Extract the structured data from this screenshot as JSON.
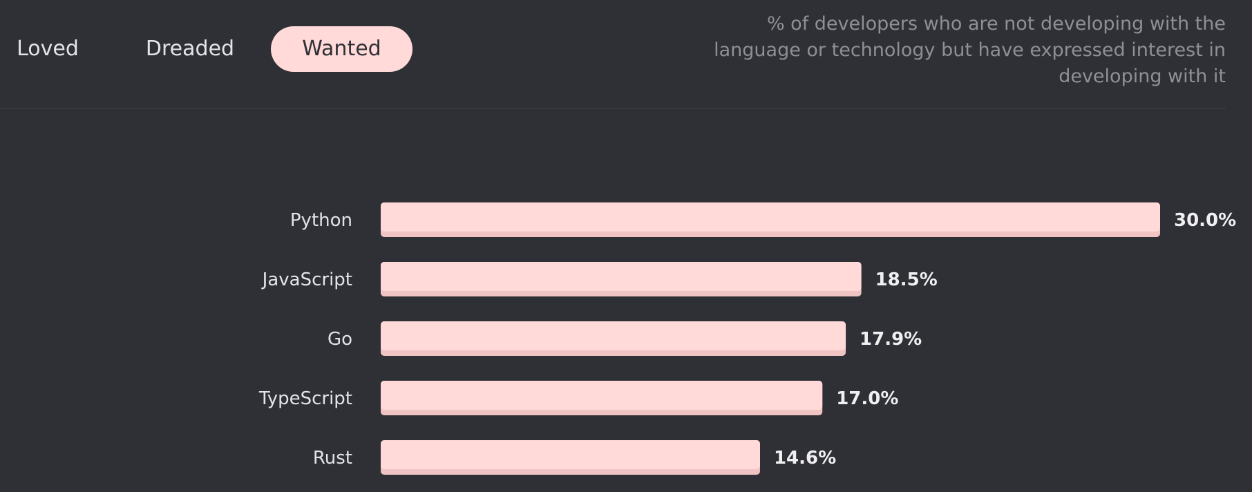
{
  "tabs": [
    {
      "label": "Loved",
      "active": false
    },
    {
      "label": "Dreaded",
      "active": false
    },
    {
      "label": "Wanted",
      "active": true
    }
  ],
  "description": "% of developers who are not developing with the language or technology but have expressed interest in developing with it",
  "colors": {
    "background": "#2f3035",
    "bar": "#ffdad8",
    "bar_shadow": "#f0c4c3",
    "active_tab": "#ffdad8"
  },
  "chart_data": {
    "type": "bar",
    "orientation": "horizontal",
    "categories": [
      "Python",
      "JavaScript",
      "Go",
      "TypeScript",
      "Rust"
    ],
    "values": [
      30.0,
      18.5,
      17.9,
      17.0,
      14.6
    ],
    "value_labels": [
      "30.0%",
      "18.5%",
      "17.9%",
      "17.0%",
      "14.6%"
    ],
    "unit": "%",
    "xlim": [
      0,
      30.0
    ],
    "grid": false,
    "legend": "none"
  }
}
